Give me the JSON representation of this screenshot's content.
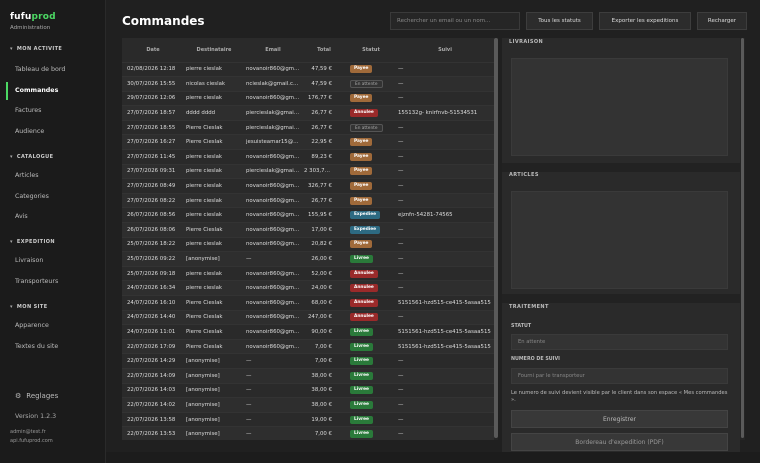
{
  "brand": {
    "logo_a": "fufu",
    "logo_b": "prod",
    "subtitle": "Administration"
  },
  "sidebar": {
    "sections": [
      {
        "label": "MON ACTIVITE",
        "items": [
          "Tableau de bord",
          "Commandes",
          "Factures",
          "Audience"
        ]
      },
      {
        "label": "CATALOGUE",
        "items": [
          "Articles",
          "Categories",
          "Avis"
        ]
      },
      {
        "label": "EXPEDITION",
        "items": [
          "Livraison",
          "Transporteurs"
        ]
      },
      {
        "label": "MON SITE",
        "items": [
          "Apparence",
          "Textes du site"
        ]
      }
    ],
    "active_item": "Commandes",
    "settings_label": "Reglages",
    "version": "Version 1.2.3",
    "user_email": "admin@test.fr",
    "user_host": "api.fufuprod.com"
  },
  "header": {
    "title": "Commandes",
    "search_placeholder": "Rechercher un email ou un nom...",
    "status_filter": "Tous les statuts",
    "export_label": "Exporter les expeditions",
    "reload_label": "Recharger"
  },
  "table": {
    "columns": [
      "Date",
      "Destinataire",
      "Email",
      "Total",
      "Statut",
      "Suivi"
    ],
    "rows": [
      [
        "02/08/2026 12:18",
        "pierre cieslak",
        "novanoir860@gmail.com",
        "47,59 €",
        "Payee",
        "—"
      ],
      [
        "30/07/2026 15:55",
        "nicolas cieslak",
        "ncieslak@gmail.com",
        "47,59 €",
        "En attente",
        "—"
      ],
      [
        "29/07/2026 12:06",
        "pierre cieslak",
        "novanoir860@gmail.com",
        "176,77 €",
        "Payee",
        "—"
      ],
      [
        "27/07/2026 18:57",
        "dddd dddd",
        "piercieslak@gmail.com",
        "26,77 €",
        "Annulee",
        "155132g- knirfnvb-51534531"
      ],
      [
        "27/07/2026 18:55",
        "Pierre Cieslak",
        "piercieslak@gmail.com",
        "26,77 €",
        "En attente",
        "—"
      ],
      [
        "27/07/2026 16:27",
        "Pierre Cieslak",
        "jesuisteamar15@gmail.com",
        "22,95 €",
        "Payee",
        "—"
      ],
      [
        "27/07/2026 11:45",
        "pierre cieslak",
        "novanoir860@gmail.com",
        "89,23 €",
        "Payee",
        "—"
      ],
      [
        "27/07/2026 09:31",
        "pierre cieslak",
        "piercieslak@gmail.com",
        "2 303,72 €",
        "Payee",
        "—"
      ],
      [
        "27/07/2026 08:49",
        "pierre cieslak",
        "novanoir860@gmail.com",
        "326,77 €",
        "Payee",
        "—"
      ],
      [
        "27/07/2026 08:22",
        "pierre cieslak",
        "novanoir860@gmail.com",
        "26,77 €",
        "Payee",
        "—"
      ],
      [
        "26/07/2026 08:56",
        "pierre cieslak",
        "novanoir860@gmail.com",
        "155,95 €",
        "Expediee",
        "ejznfn-54281-74565"
      ],
      [
        "26/07/2026 08:06",
        "Pierre Cieslak",
        "novanoir860@gmail.com",
        "17,00 €",
        "Expediee",
        "—"
      ],
      [
        "25/07/2026 18:22",
        "pierre cieslak",
        "novanoir860@gmail.com",
        "20,82 €",
        "Payee",
        "—"
      ],
      [
        "25/07/2026 09:22",
        "[anonymise]",
        "—",
        "26,00 €",
        "Livree",
        "—"
      ],
      [
        "25/07/2026 09:18",
        "pierre cieslak",
        "novanoir860@gmail.com",
        "52,00 €",
        "Annulee",
        "—"
      ],
      [
        "24/07/2026 16:34",
        "pierre cieslak",
        "novanoir860@gmail.com",
        "24,00 €",
        "Annulee",
        "—"
      ],
      [
        "24/07/2026 16:10",
        "Pierre Cieslak",
        "novanoir860@gmail.com",
        "68,00 €",
        "Annulee",
        "5151561-hzd515-ce415-5asaa515"
      ],
      [
        "24/07/2026 14:40",
        "Pierre Cieslak",
        "novanoir860@gmail.com",
        "247,00 €",
        "Annulee",
        "—"
      ],
      [
        "24/07/2026 11:01",
        "Pierre Cieslak",
        "novanoir860@gmail.com",
        "90,00 €",
        "Livree",
        "5151561-hzd515-ce415-5asaa515"
      ],
      [
        "22/07/2026 17:09",
        "Pierre Cieslak",
        "novanoir860@gmail.com",
        "7,00 €",
        "Livree",
        "5151561-hzd515-ce415-5asaa515"
      ],
      [
        "22/07/2026 14:29",
        "[anonymise]",
        "—",
        "7,00 €",
        "Livree",
        "—"
      ],
      [
        "22/07/2026 14:09",
        "[anonymise]",
        "—",
        "38,00 €",
        "Livree",
        "—"
      ],
      [
        "22/07/2026 14:03",
        "[anonymise]",
        "—",
        "38,00 €",
        "Livree",
        "—"
      ],
      [
        "22/07/2026 14:02",
        "[anonymise]",
        "—",
        "38,00 €",
        "Livree",
        "—"
      ],
      [
        "22/07/2026 13:58",
        "[anonymise]",
        "—",
        "19,00 €",
        "Livree",
        "—"
      ],
      [
        "22/07/2026 13:53",
        "[anonymise]",
        "—",
        "7,00 €",
        "Livree",
        "—"
      ]
    ]
  },
  "status_colors": {
    "Payee": "#a06a3a",
    "En attente": "#333333",
    "Annulee": "#9a2a2a",
    "Expediee": "#2d6a82",
    "Livree": "#2a7a3a"
  },
  "details": {
    "livraison_label": "LIVRAISON",
    "articles_label": "ARTICLES",
    "traitement_label": "TRAITEMENT",
    "statut_label": "STATUT",
    "statut_value": "En attente",
    "suivi_label": "NUMERO DE SUIVI",
    "suivi_placeholder": "Fourni par le transporteur",
    "hint": "Le numero de suivi devient visible par le client dans son espace « Mes commandes ».",
    "save_label": "Enregistrer",
    "pdf_label": "Bordereau d'expedition (PDF)"
  },
  "accent_color": "#4cd964"
}
